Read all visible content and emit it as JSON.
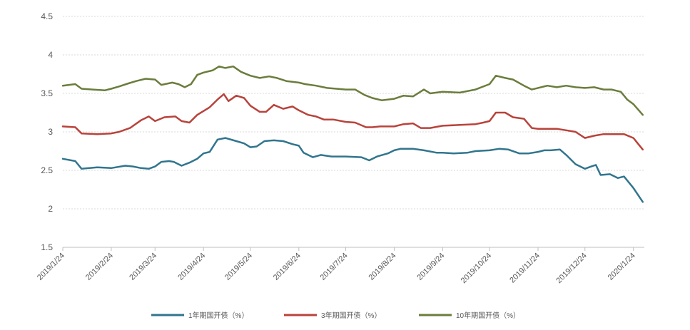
{
  "chart_data": {
    "type": "line",
    "title": "",
    "xlabel": "",
    "ylabel": "",
    "ylim": [
      1.5,
      4.5
    ],
    "yticks": [
      "1.5",
      "2",
      "2.5",
      "3",
      "3.5",
      "4",
      "4.5"
    ],
    "x_tick_labels": [
      "2019/1/24",
      "2019/2/24",
      "2019/3/24",
      "2019/4/24",
      "2019/5/24",
      "2019/6/24",
      "2019/7/24",
      "2019/8/24",
      "2019/9/24",
      "2019/10/24",
      "2019/11/24",
      "2019/12/24",
      "2020/1/24"
    ],
    "grid": "horizontal",
    "legend_position": "bottom",
    "series": [
      {
        "name": "1年期国开债（%）",
        "color": "#31758e",
        "points": [
          [
            "2019-01-24",
            2.65
          ],
          [
            "2019-02-01",
            2.62
          ],
          [
            "2019-02-05",
            2.52
          ],
          [
            "2019-02-15",
            2.54
          ],
          [
            "2019-02-24",
            2.53
          ],
          [
            "2019-03-05",
            2.56
          ],
          [
            "2019-03-10",
            2.55
          ],
          [
            "2019-03-15",
            2.53
          ],
          [
            "2019-03-20",
            2.52
          ],
          [
            "2019-03-24",
            2.55
          ],
          [
            "2019-03-28",
            2.61
          ],
          [
            "2019-04-02",
            2.62
          ],
          [
            "2019-04-05",
            2.61
          ],
          [
            "2019-04-10",
            2.56
          ],
          [
            "2019-04-15",
            2.6
          ],
          [
            "2019-04-20",
            2.65
          ],
          [
            "2019-04-24",
            2.72
          ],
          [
            "2019-04-28",
            2.74
          ],
          [
            "2019-05-03",
            2.9
          ],
          [
            "2019-05-08",
            2.92
          ],
          [
            "2019-05-15",
            2.88
          ],
          [
            "2019-05-20",
            2.85
          ],
          [
            "2019-05-24",
            2.8
          ],
          [
            "2019-05-28",
            2.81
          ],
          [
            "2019-06-02",
            2.88
          ],
          [
            "2019-06-08",
            2.89
          ],
          [
            "2019-06-14",
            2.88
          ],
          [
            "2019-06-20",
            2.84
          ],
          [
            "2019-06-24",
            2.82
          ],
          [
            "2019-06-27",
            2.73
          ],
          [
            "2019-07-03",
            2.67
          ],
          [
            "2019-07-08",
            2.7
          ],
          [
            "2019-07-15",
            2.68
          ],
          [
            "2019-07-24",
            2.68
          ],
          [
            "2019-08-03",
            2.67
          ],
          [
            "2019-08-08",
            2.63
          ],
          [
            "2019-08-13",
            2.68
          ],
          [
            "2019-08-20",
            2.72
          ],
          [
            "2019-08-24",
            2.76
          ],
          [
            "2019-08-28",
            2.78
          ],
          [
            "2019-09-05",
            2.78
          ],
          [
            "2019-09-12",
            2.76
          ],
          [
            "2019-09-20",
            2.73
          ],
          [
            "2019-09-24",
            2.73
          ],
          [
            "2019-10-01",
            2.72
          ],
          [
            "2019-10-10",
            2.73
          ],
          [
            "2019-10-15",
            2.75
          ],
          [
            "2019-10-24",
            2.76
          ],
          [
            "2019-10-30",
            2.78
          ],
          [
            "2019-11-05",
            2.77
          ],
          [
            "2019-11-12",
            2.72
          ],
          [
            "2019-11-18",
            2.72
          ],
          [
            "2019-11-24",
            2.74
          ],
          [
            "2019-11-28",
            2.76
          ],
          [
            "2019-12-02",
            2.76
          ],
          [
            "2019-12-08",
            2.77
          ],
          [
            "2019-12-12",
            2.7
          ],
          [
            "2019-12-18",
            2.58
          ],
          [
            "2019-12-24",
            2.52
          ],
          [
            "2019-12-28",
            2.55
          ],
          [
            "2019-12-31",
            2.57
          ],
          [
            "2020-01-03",
            2.44
          ],
          [
            "2020-01-09",
            2.45
          ],
          [
            "2020-01-14",
            2.4
          ],
          [
            "2020-01-18",
            2.42
          ],
          [
            "2020-01-24",
            2.27
          ],
          [
            "2020-01-30",
            2.09
          ]
        ]
      },
      {
        "name": "3年期国开债（%）",
        "color": "#b8433b",
        "points": [
          [
            "2019-01-24",
            3.07
          ],
          [
            "2019-02-01",
            3.06
          ],
          [
            "2019-02-05",
            2.98
          ],
          [
            "2019-02-15",
            2.97
          ],
          [
            "2019-02-24",
            2.98
          ],
          [
            "2019-03-01",
            3.0
          ],
          [
            "2019-03-08",
            3.05
          ],
          [
            "2019-03-15",
            3.15
          ],
          [
            "2019-03-20",
            3.2
          ],
          [
            "2019-03-24",
            3.14
          ],
          [
            "2019-03-30",
            3.19
          ],
          [
            "2019-04-06",
            3.2
          ],
          [
            "2019-04-10",
            3.14
          ],
          [
            "2019-04-15",
            3.12
          ],
          [
            "2019-04-20",
            3.22
          ],
          [
            "2019-04-24",
            3.27
          ],
          [
            "2019-04-28",
            3.32
          ],
          [
            "2019-05-03",
            3.42
          ],
          [
            "2019-05-07",
            3.49
          ],
          [
            "2019-05-10",
            3.4
          ],
          [
            "2019-05-15",
            3.47
          ],
          [
            "2019-05-20",
            3.44
          ],
          [
            "2019-05-24",
            3.34
          ],
          [
            "2019-05-30",
            3.26
          ],
          [
            "2019-06-03",
            3.26
          ],
          [
            "2019-06-08",
            3.35
          ],
          [
            "2019-06-14",
            3.3
          ],
          [
            "2019-06-20",
            3.33
          ],
          [
            "2019-06-24",
            3.28
          ],
          [
            "2019-06-30",
            3.22
          ],
          [
            "2019-07-05",
            3.2
          ],
          [
            "2019-07-10",
            3.16
          ],
          [
            "2019-07-16",
            3.16
          ],
          [
            "2019-07-24",
            3.13
          ],
          [
            "2019-07-30",
            3.12
          ],
          [
            "2019-08-06",
            3.06
          ],
          [
            "2019-08-10",
            3.06
          ],
          [
            "2019-08-15",
            3.07
          ],
          [
            "2019-08-24",
            3.07
          ],
          [
            "2019-08-30",
            3.1
          ],
          [
            "2019-09-05",
            3.11
          ],
          [
            "2019-09-10",
            3.05
          ],
          [
            "2019-09-16",
            3.05
          ],
          [
            "2019-09-24",
            3.08
          ],
          [
            "2019-10-05",
            3.09
          ],
          [
            "2019-10-15",
            3.1
          ],
          [
            "2019-10-20",
            3.12
          ],
          [
            "2019-10-24",
            3.14
          ],
          [
            "2019-10-28",
            3.25
          ],
          [
            "2019-11-03",
            3.25
          ],
          [
            "2019-11-08",
            3.19
          ],
          [
            "2019-11-15",
            3.17
          ],
          [
            "2019-11-20",
            3.05
          ],
          [
            "2019-11-24",
            3.04
          ],
          [
            "2019-11-30",
            3.04
          ],
          [
            "2019-12-06",
            3.04
          ],
          [
            "2019-12-12",
            3.02
          ],
          [
            "2019-12-18",
            3.0
          ],
          [
            "2019-12-24",
            2.92
          ],
          [
            "2019-12-30",
            2.95
          ],
          [
            "2020-01-05",
            2.97
          ],
          [
            "2020-01-12",
            2.97
          ],
          [
            "2020-01-18",
            2.97
          ],
          [
            "2020-01-24",
            2.92
          ],
          [
            "2020-01-30",
            2.77
          ]
        ]
      },
      {
        "name": "10年期国开债（%）",
        "color": "#6a7d3c",
        "points": [
          [
            "2019-01-24",
            3.6
          ],
          [
            "2019-02-01",
            3.62
          ],
          [
            "2019-02-05",
            3.56
          ],
          [
            "2019-02-12",
            3.55
          ],
          [
            "2019-02-20",
            3.54
          ],
          [
            "2019-02-24",
            3.56
          ],
          [
            "2019-03-01",
            3.59
          ],
          [
            "2019-03-07",
            3.63
          ],
          [
            "2019-03-12",
            3.66
          ],
          [
            "2019-03-18",
            3.69
          ],
          [
            "2019-03-24",
            3.68
          ],
          [
            "2019-03-28",
            3.61
          ],
          [
            "2019-04-04",
            3.64
          ],
          [
            "2019-04-08",
            3.62
          ],
          [
            "2019-04-12",
            3.58
          ],
          [
            "2019-04-16",
            3.62
          ],
          [
            "2019-04-20",
            3.74
          ],
          [
            "2019-04-24",
            3.77
          ],
          [
            "2019-04-30",
            3.8
          ],
          [
            "2019-05-04",
            3.85
          ],
          [
            "2019-05-08",
            3.83
          ],
          [
            "2019-05-13",
            3.85
          ],
          [
            "2019-05-18",
            3.78
          ],
          [
            "2019-05-24",
            3.73
          ],
          [
            "2019-05-30",
            3.7
          ],
          [
            "2019-06-05",
            3.72
          ],
          [
            "2019-06-10",
            3.7
          ],
          [
            "2019-06-16",
            3.66
          ],
          [
            "2019-06-24",
            3.64
          ],
          [
            "2019-06-28",
            3.62
          ],
          [
            "2019-07-05",
            3.6
          ],
          [
            "2019-07-12",
            3.57
          ],
          [
            "2019-07-18",
            3.56
          ],
          [
            "2019-07-24",
            3.55
          ],
          [
            "2019-07-30",
            3.55
          ],
          [
            "2019-08-05",
            3.48
          ],
          [
            "2019-08-10",
            3.44
          ],
          [
            "2019-08-16",
            3.41
          ],
          [
            "2019-08-24",
            3.43
          ],
          [
            "2019-08-30",
            3.47
          ],
          [
            "2019-09-05",
            3.46
          ],
          [
            "2019-09-12",
            3.55
          ],
          [
            "2019-09-16",
            3.5
          ],
          [
            "2019-09-24",
            3.52
          ],
          [
            "2019-10-05",
            3.51
          ],
          [
            "2019-10-15",
            3.55
          ],
          [
            "2019-10-24",
            3.62
          ],
          [
            "2019-10-28",
            3.73
          ],
          [
            "2019-11-03",
            3.7
          ],
          [
            "2019-11-08",
            3.68
          ],
          [
            "2019-11-15",
            3.6
          ],
          [
            "2019-11-20",
            3.55
          ],
          [
            "2019-11-24",
            3.57
          ],
          [
            "2019-11-30",
            3.6
          ],
          [
            "2019-12-06",
            3.58
          ],
          [
            "2019-12-12",
            3.6
          ],
          [
            "2019-12-18",
            3.58
          ],
          [
            "2019-12-24",
            3.57
          ],
          [
            "2019-12-30",
            3.58
          ],
          [
            "2020-01-05",
            3.55
          ],
          [
            "2020-01-10",
            3.55
          ],
          [
            "2020-01-16",
            3.52
          ],
          [
            "2020-01-20",
            3.42
          ],
          [
            "2020-01-24",
            3.36
          ],
          [
            "2020-01-30",
            3.22
          ]
        ]
      }
    ]
  }
}
